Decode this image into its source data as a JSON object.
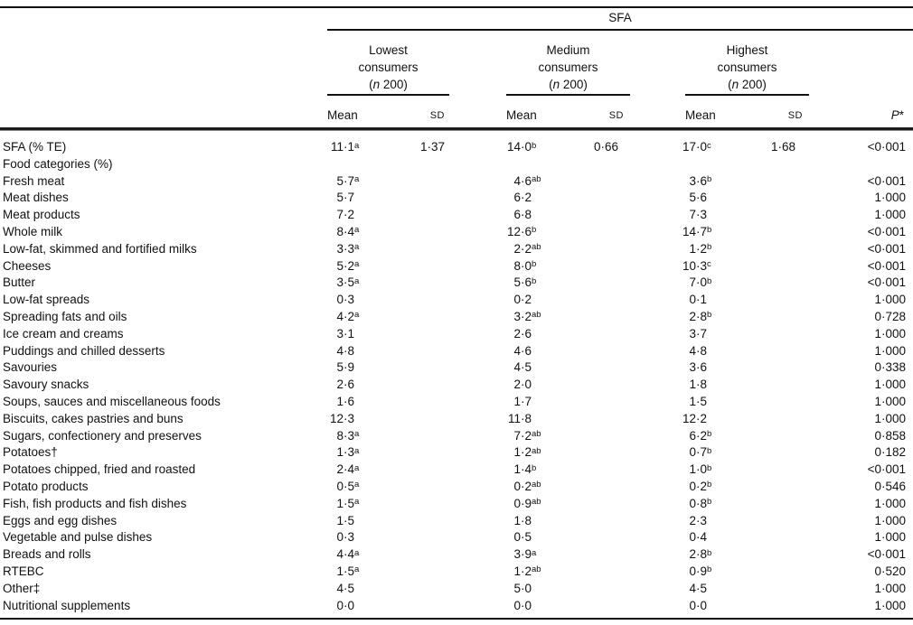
{
  "table": {
    "spanner": "SFA",
    "groups": [
      {
        "line1": "Lowest",
        "line2": "consumers",
        "n_open": "(",
        "n_var": "n",
        "n_close": " 200)"
      },
      {
        "line1": "Medium",
        "line2": "consumers",
        "n_open": "(",
        "n_var": "n",
        "n_close": " 200)"
      },
      {
        "line1": "Highest",
        "line2": "consumers",
        "n_open": "(",
        "n_var": "n",
        "n_close": " 200)"
      }
    ],
    "col_headers": {
      "mean": "Mean",
      "sd": "SD",
      "p_italic": "P",
      "p_star": "*"
    },
    "rows": [
      {
        "label": "SFA (% TE)",
        "m1": "11·1",
        "s1": "a",
        "sd1": "1·37",
        "m2": "14·0",
        "s2": "b",
        "sd2": "0·66",
        "m3": "17·0",
        "s3": "c",
        "sd3": "1·68",
        "p": "<0·001"
      },
      {
        "label": "Food categories (%)"
      },
      {
        "label": "Fresh meat",
        "m1": "5·7",
        "s1": "a",
        "m2": "4·6",
        "s2": "ab",
        "m3": "3·6",
        "s3": "b",
        "p": "<0·001"
      },
      {
        "label": "Meat dishes",
        "m1": "5·7",
        "m2": "6·2",
        "m3": "5·6",
        "p": "1·000"
      },
      {
        "label": "Meat products",
        "m1": "7·2",
        "m2": "6·8",
        "m3": "7·3",
        "p": "1·000"
      },
      {
        "label": "Whole milk",
        "m1": "8·4",
        "s1": "a",
        "m2": "12·6",
        "s2": "b",
        "m3": "14·7",
        "s3": "b",
        "p": "<0·001"
      },
      {
        "label": "Low-fat, skimmed and fortified milks",
        "m1": "3·3",
        "s1": "a",
        "m2": "2·2",
        "s2": "ab",
        "m3": "1·2",
        "s3": "b",
        "p": "<0·001"
      },
      {
        "label": "Cheeses",
        "m1": "5·2",
        "s1": "a",
        "m2": "8·0",
        "s2": "b",
        "m3": "10·3",
        "s3": "c",
        "p": "<0·001"
      },
      {
        "label": "Butter",
        "m1": "3·5",
        "s1": "a",
        "m2": "5·6",
        "s2": "b",
        "m3": "7·0",
        "s3": "b",
        "p": "<0·001"
      },
      {
        "label": "Low-fat spreads",
        "m1": "0·3",
        "m2": "0·2",
        "m3": "0·1",
        "p": "1·000"
      },
      {
        "label": "Spreading fats and oils",
        "m1": "4·2",
        "s1": "a",
        "m2": "3·2",
        "s2": "ab",
        "m3": "2·8",
        "s3": "b",
        "p": "0·728"
      },
      {
        "label": "Ice cream and creams",
        "m1": "3·1",
        "m2": "2·6",
        "m3": "3·7",
        "p": "1·000"
      },
      {
        "label": "Puddings and chilled desserts",
        "m1": "4·8",
        "m2": "4·6",
        "m3": "4·8",
        "p": "1·000"
      },
      {
        "label": "Savouries",
        "m1": "5·9",
        "m2": "4·5",
        "m3": "3·6",
        "p": "0·338"
      },
      {
        "label": "Savoury snacks",
        "m1": "2·6",
        "m2": "2·0",
        "m3": "1·8",
        "p": "1·000"
      },
      {
        "label": "Soups, sauces and miscellaneous foods",
        "m1": "1·6",
        "m2": "1·7",
        "m3": "1·5",
        "p": "1·000"
      },
      {
        "label": "Biscuits, cakes pastries and buns",
        "m1": "12·3",
        "m2": "11·8",
        "m3": "12·2",
        "p": "1·000"
      },
      {
        "label": "Sugars, confectionery and preserves",
        "m1": "8·3",
        "s1": "a",
        "m2": "7·2",
        "s2": "ab",
        "m3": "6·2",
        "s3": "b",
        "p": "0·858"
      },
      {
        "label": "Potatoes†",
        "m1": "1·3",
        "s1": "a",
        "m2": "1·2",
        "s2": "ab",
        "m3": "0·7",
        "s3": "b",
        "p": "0·182"
      },
      {
        "label": "Potatoes chipped, fried and roasted",
        "m1": "2·4",
        "s1": "a",
        "m2": "1·4",
        "s2": "b",
        "m3": "1·0",
        "s3": "b",
        "p": "<0·001"
      },
      {
        "label": "Potato products",
        "m1": "0·5",
        "s1": "a",
        "m2": "0·2",
        "s2": "ab",
        "m3": "0·2",
        "s3": "b",
        "p": "0·546"
      },
      {
        "label": "Fish, fish products and fish dishes",
        "m1": "1·5",
        "s1": "a",
        "m2": "0·9",
        "s2": "ab",
        "m3": "0·8",
        "s3": "b",
        "p": "1·000"
      },
      {
        "label": "Eggs and egg dishes",
        "m1": "1·5",
        "m2": "1·8",
        "m3": "2·3",
        "p": "1·000"
      },
      {
        "label": "Vegetable and pulse dishes",
        "m1": "0·3",
        "m2": "0·5",
        "m3": "0·4",
        "p": "1·000"
      },
      {
        "label": "Breads and rolls",
        "m1": "4·4",
        "s1": "a",
        "m2": "3·9",
        "s2": "a",
        "m3": "2·8",
        "s3": "b",
        "p": "<0·001"
      },
      {
        "label": "RTEBC",
        "m1": "1·5",
        "s1": "a",
        "m2": "1·2",
        "s2": "ab",
        "m3": "0·9",
        "s3": "b",
        "p": "0·520"
      },
      {
        "label": "Other‡",
        "m1": "4·5",
        "m2": "5·0",
        "m3": "4·5",
        "p": "1·000"
      },
      {
        "label": "Nutritional supplements",
        "m1": "0·0",
        "m2": "0·0",
        "m3": "0·0",
        "p": "1·000"
      }
    ]
  }
}
